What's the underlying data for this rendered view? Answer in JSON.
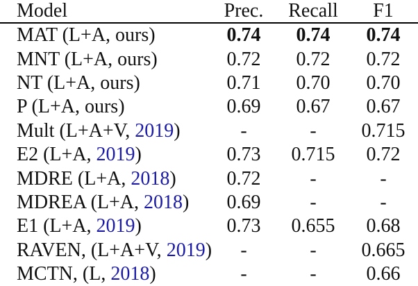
{
  "colors": {
    "text": "#101010",
    "citation_blue": "#1a1aa6",
    "rule_black": "#000000",
    "background": "#ffffff"
  },
  "table": {
    "columns": [
      "Model",
      "Prec.",
      "Recall",
      "F1"
    ],
    "rows": [
      {
        "model_pre": "MAT (L+A, ours)",
        "model_cite": "",
        "model_post": "",
        "prec": "0.74",
        "recall": "0.74",
        "f1": "0.74",
        "bold": true
      },
      {
        "model_pre": "MNT (L+A, ours)",
        "model_cite": "",
        "model_post": "",
        "prec": "0.72",
        "recall": "0.72",
        "f1": "0.72",
        "bold": false
      },
      {
        "model_pre": "NT (L+A, ours)",
        "model_cite": "",
        "model_post": "",
        "prec": "0.71",
        "recall": "0.70",
        "f1": "0.70",
        "bold": false
      },
      {
        "model_pre": "P (L+A, ours)",
        "model_cite": "",
        "model_post": "",
        "prec": "0.69",
        "recall": "0.67",
        "f1": "0.67",
        "bold": false
      },
      {
        "model_pre": "Mult (L+A+V, ",
        "model_cite": "2019",
        "model_post": ")",
        "prec": "-",
        "recall": "-",
        "f1": "0.715",
        "bold": false
      },
      {
        "model_pre": "E2 (L+A, ",
        "model_cite": "2019",
        "model_post": ")",
        "prec": "0.73",
        "recall": "0.715",
        "f1": "0.72",
        "bold": false
      },
      {
        "model_pre": "MDRE (L+A, ",
        "model_cite": "2018",
        "model_post": ")",
        "prec": "0.72",
        "recall": "-",
        "f1": "-",
        "bold": false
      },
      {
        "model_pre": "MDREA (L+A, ",
        "model_cite": "2018",
        "model_post": ")",
        "prec": "0.69",
        "recall": "-",
        "f1": "-",
        "bold": false
      },
      {
        "model_pre": "E1 (L+A, ",
        "model_cite": "2019",
        "model_post": ")",
        "prec": "0.73",
        "recall": "0.655",
        "f1": "0.68",
        "bold": false
      },
      {
        "model_pre": "RAVEN, (L+A+V, ",
        "model_cite": "2019",
        "model_post": ")",
        "prec": "-",
        "recall": "-",
        "f1": "0.665",
        "bold": false
      },
      {
        "model_pre": "MCTN, (L, ",
        "model_cite": "2018",
        "model_post": ")",
        "prec": "-",
        "recall": "-",
        "f1": "0.66",
        "bold": false
      }
    ]
  }
}
